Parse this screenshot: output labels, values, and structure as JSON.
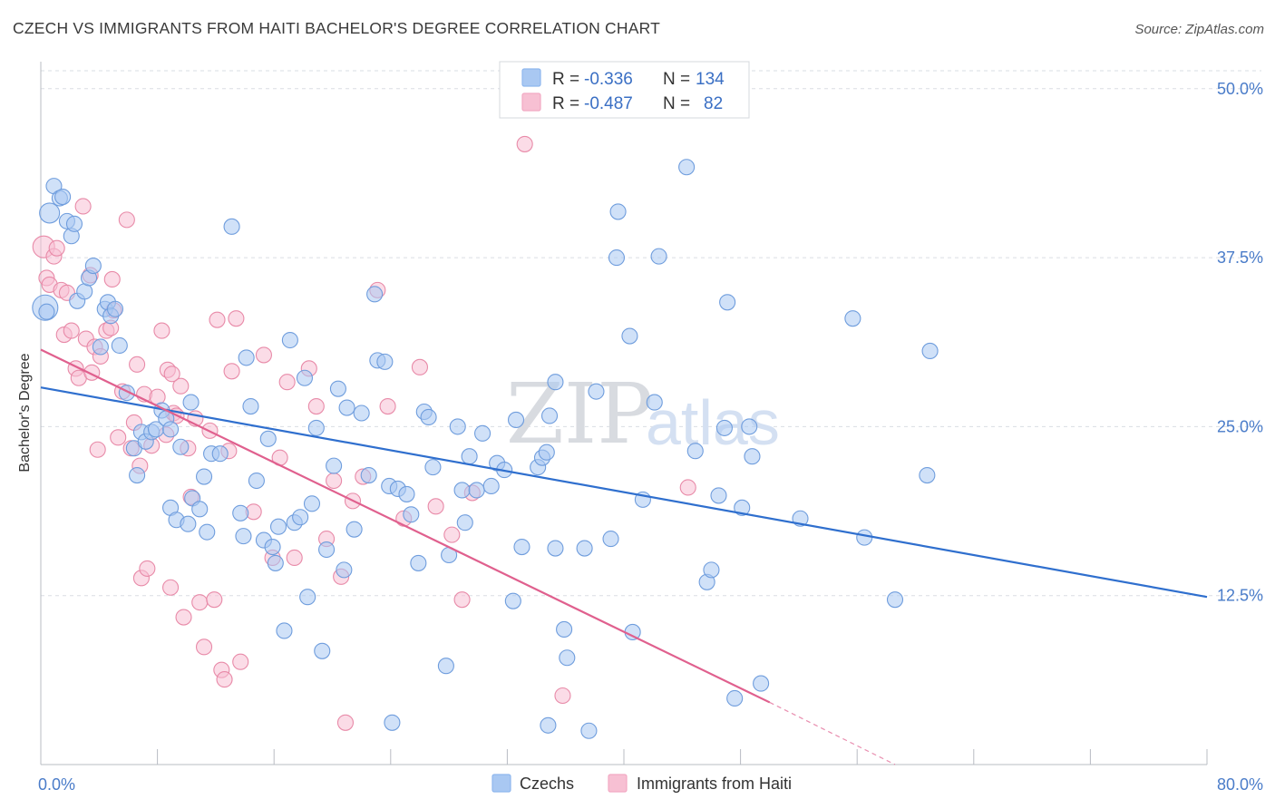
{
  "header": {
    "title": "CZECH VS IMMIGRANTS FROM HAITI BACHELOR'S DEGREE CORRELATION CHART",
    "source": "Source: ZipAtlas.com"
  },
  "watermark": {
    "zip": "ZIP",
    "atlas": "atlas"
  },
  "legend": {
    "r_label": "R =",
    "n_label": "N =",
    "rows": [
      {
        "r": "-0.336",
        "n": "134",
        "color": "#8fb7ee"
      },
      {
        "r": "-0.487",
        "n": "82",
        "color": "#f2a9c3"
      }
    ]
  },
  "bottom_legend": {
    "czechs": "Czechs",
    "haiti": "Immigrants from Haiti"
  },
  "colors": {
    "czech_fill": "#a9c8f2",
    "czech_stroke": "#6f9ddd",
    "czech_line": "#2f6fce",
    "haiti_fill": "#f7c0d3",
    "haiti_stroke": "#e88aa8",
    "haiti_line": "#e0608e",
    "tick_text": "#4a7cc9",
    "grid": "#dadde3"
  },
  "chart_data": {
    "type": "scatter",
    "title": "CZECH VS IMMIGRANTS FROM HAITI BACHELOR'S DEGREE CORRELATION CHART",
    "xlabel": "",
    "ylabel": "Bachelor's Degree",
    "xlim": [
      0,
      80
    ],
    "ylim": [
      0,
      52
    ],
    "x_tick_labels": [
      "0.0%",
      "80.0%"
    ],
    "y_ticks": [
      12.5,
      25.0,
      37.5,
      50.0
    ],
    "y_tick_labels": [
      "12.5%",
      "25.0%",
      "37.5%",
      "50.0%"
    ],
    "grid": true,
    "legend_position": "top-center",
    "series": [
      {
        "name": "Czechs",
        "r": -0.336,
        "n": 134,
        "trend": {
          "x": [
            0,
            80
          ],
          "y": [
            27.9,
            12.4
          ]
        },
        "points": [
          [
            0.3,
            33.8
          ],
          [
            0.6,
            40.8
          ],
          [
            0.9,
            42.8
          ],
          [
            1.3,
            41.9
          ],
          [
            1.5,
            42.0
          ],
          [
            1.8,
            40.2
          ],
          [
            2.1,
            39.1
          ],
          [
            2.3,
            40.0
          ],
          [
            2.5,
            34.3
          ],
          [
            3.0,
            35.0
          ],
          [
            3.3,
            36.0
          ],
          [
            3.6,
            36.9
          ],
          [
            4.1,
            30.9
          ],
          [
            4.4,
            33.7
          ],
          [
            4.6,
            34.2
          ],
          [
            4.8,
            33.2
          ],
          [
            5.1,
            33.7
          ],
          [
            5.4,
            31.0
          ],
          [
            5.9,
            27.5
          ],
          [
            6.4,
            23.4
          ],
          [
            6.6,
            21.4
          ],
          [
            6.9,
            24.6
          ],
          [
            7.2,
            23.9
          ],
          [
            7.6,
            24.6
          ],
          [
            7.9,
            24.8
          ],
          [
            8.3,
            26.2
          ],
          [
            8.6,
            25.6
          ],
          [
            8.9,
            24.8
          ],
          [
            8.9,
            19.0
          ],
          [
            9.3,
            18.1
          ],
          [
            9.6,
            23.5
          ],
          [
            10.1,
            17.8
          ],
          [
            10.3,
            26.8
          ],
          [
            10.4,
            19.7
          ],
          [
            10.9,
            18.9
          ],
          [
            11.2,
            21.3
          ],
          [
            11.4,
            17.2
          ],
          [
            11.7,
            23.0
          ],
          [
            12.3,
            23.0
          ],
          [
            13.1,
            39.8
          ],
          [
            13.7,
            18.6
          ],
          [
            13.9,
            16.9
          ],
          [
            14.1,
            30.1
          ],
          [
            14.4,
            26.5
          ],
          [
            14.8,
            21.0
          ],
          [
            15.3,
            16.6
          ],
          [
            15.6,
            24.1
          ],
          [
            15.9,
            16.1
          ],
          [
            16.1,
            14.9
          ],
          [
            16.3,
            17.6
          ],
          [
            16.7,
            9.9
          ],
          [
            17.1,
            31.4
          ],
          [
            17.4,
            17.9
          ],
          [
            17.8,
            18.3
          ],
          [
            18.1,
            28.6
          ],
          [
            18.3,
            12.4
          ],
          [
            18.6,
            19.3
          ],
          [
            18.9,
            24.9
          ],
          [
            19.3,
            8.4
          ],
          [
            19.6,
            15.9
          ],
          [
            20.1,
            22.1
          ],
          [
            20.4,
            27.8
          ],
          [
            20.8,
            14.4
          ],
          [
            21.0,
            26.4
          ],
          [
            21.5,
            17.4
          ],
          [
            22.0,
            26.0
          ],
          [
            22.5,
            21.4
          ],
          [
            22.9,
            34.8
          ],
          [
            23.1,
            29.9
          ],
          [
            23.6,
            29.8
          ],
          [
            23.9,
            20.6
          ],
          [
            24.1,
            3.1
          ],
          [
            24.5,
            20.4
          ],
          [
            25.1,
            20.0
          ],
          [
            25.4,
            18.5
          ],
          [
            25.9,
            14.9
          ],
          [
            26.3,
            26.1
          ],
          [
            26.6,
            25.7
          ],
          [
            26.9,
            22.0
          ],
          [
            27.8,
            7.3
          ],
          [
            28.0,
            15.5
          ],
          [
            28.6,
            25.0
          ],
          [
            28.9,
            20.3
          ],
          [
            29.1,
            17.9
          ],
          [
            29.4,
            22.8
          ],
          [
            29.9,
            20.3
          ],
          [
            30.3,
            24.5
          ],
          [
            30.9,
            20.6
          ],
          [
            31.3,
            22.3
          ],
          [
            31.8,
            21.8
          ],
          [
            32.4,
            12.1
          ],
          [
            32.6,
            25.5
          ],
          [
            33.0,
            16.1
          ],
          [
            34.1,
            22.0
          ],
          [
            34.4,
            22.7
          ],
          [
            34.7,
            23.1
          ],
          [
            34.9,
            25.8
          ],
          [
            35.3,
            28.3
          ],
          [
            34.8,
            2.9
          ],
          [
            35.9,
            10.0
          ],
          [
            35.3,
            16.0
          ],
          [
            36.1,
            7.9
          ],
          [
            37.3,
            16.0
          ],
          [
            37.6,
            2.5
          ],
          [
            38.1,
            27.6
          ],
          [
            39.1,
            16.7
          ],
          [
            39.5,
            37.5
          ],
          [
            39.6,
            40.9
          ],
          [
            40.4,
            31.7
          ],
          [
            40.6,
            9.8
          ],
          [
            41.3,
            19.6
          ],
          [
            42.1,
            26.8
          ],
          [
            42.4,
            37.6
          ],
          [
            44.3,
            44.2
          ],
          [
            44.9,
            23.2
          ],
          [
            45.7,
            13.5
          ],
          [
            46.0,
            14.4
          ],
          [
            46.5,
            19.9
          ],
          [
            46.9,
            24.9
          ],
          [
            47.1,
            34.2
          ],
          [
            47.6,
            4.9
          ],
          [
            48.1,
            19.0
          ],
          [
            48.6,
            25.0
          ],
          [
            48.8,
            22.8
          ],
          [
            49.4,
            6.0
          ],
          [
            52.1,
            18.2
          ],
          [
            55.7,
            33.0
          ],
          [
            56.5,
            16.8
          ],
          [
            58.6,
            12.2
          ],
          [
            60.8,
            21.4
          ],
          [
            61.0,
            30.6
          ],
          [
            0.4,
            33.5
          ]
        ]
      },
      {
        "name": "Immigrants from Haiti",
        "r": -0.487,
        "n": 82,
        "trend": {
          "x": [
            0,
            50
          ],
          "y": [
            30.7,
            4.6
          ]
        },
        "trend_dashed": {
          "x": [
            50,
            58.6
          ],
          "y": [
            4.6,
            0
          ]
        },
        "points": [
          [
            0.2,
            38.3
          ],
          [
            0.4,
            36.0
          ],
          [
            0.6,
            35.5
          ],
          [
            0.9,
            37.6
          ],
          [
            1.1,
            38.2
          ],
          [
            1.4,
            35.1
          ],
          [
            1.6,
            31.8
          ],
          [
            1.8,
            34.9
          ],
          [
            2.1,
            32.1
          ],
          [
            2.4,
            29.3
          ],
          [
            2.6,
            28.6
          ],
          [
            2.9,
            41.3
          ],
          [
            3.1,
            31.5
          ],
          [
            3.4,
            36.2
          ],
          [
            3.5,
            29.0
          ],
          [
            3.7,
            30.9
          ],
          [
            3.9,
            23.3
          ],
          [
            4.1,
            30.2
          ],
          [
            4.5,
            32.1
          ],
          [
            4.8,
            32.3
          ],
          [
            4.9,
            35.9
          ],
          [
            5.0,
            33.6
          ],
          [
            5.3,
            24.2
          ],
          [
            5.6,
            27.6
          ],
          [
            5.9,
            40.3
          ],
          [
            6.2,
            23.4
          ],
          [
            6.4,
            25.3
          ],
          [
            6.6,
            29.6
          ],
          [
            6.8,
            22.1
          ],
          [
            6.9,
            13.8
          ],
          [
            7.1,
            27.4
          ],
          [
            7.3,
            14.5
          ],
          [
            7.6,
            23.6
          ],
          [
            8.0,
            27.2
          ],
          [
            8.3,
            32.1
          ],
          [
            8.6,
            24.4
          ],
          [
            8.7,
            29.2
          ],
          [
            8.9,
            13.1
          ],
          [
            9.1,
            26.0
          ],
          [
            9.3,
            25.8
          ],
          [
            9.6,
            28.0
          ],
          [
            9.8,
            10.9
          ],
          [
            10.1,
            23.4
          ],
          [
            10.3,
            19.8
          ],
          [
            10.6,
            25.6
          ],
          [
            10.9,
            12.0
          ],
          [
            11.2,
            8.7
          ],
          [
            11.6,
            24.7
          ],
          [
            11.9,
            12.2
          ],
          [
            12.1,
            32.9
          ],
          [
            12.4,
            7.0
          ],
          [
            12.6,
            6.3
          ],
          [
            12.9,
            23.2
          ],
          [
            13.1,
            29.1
          ],
          [
            13.4,
            33.0
          ],
          [
            13.7,
            7.6
          ],
          [
            14.6,
            18.7
          ],
          [
            15.3,
            30.3
          ],
          [
            15.9,
            15.3
          ],
          [
            16.4,
            22.7
          ],
          [
            16.9,
            28.3
          ],
          [
            17.4,
            15.3
          ],
          [
            18.4,
            29.3
          ],
          [
            18.9,
            26.5
          ],
          [
            19.6,
            16.7
          ],
          [
            20.1,
            21.0
          ],
          [
            20.6,
            13.9
          ],
          [
            20.9,
            3.1
          ],
          [
            21.4,
            19.5
          ],
          [
            22.1,
            21.3
          ],
          [
            23.1,
            35.1
          ],
          [
            24.9,
            18.2
          ],
          [
            26.0,
            29.4
          ],
          [
            27.1,
            19.1
          ],
          [
            28.2,
            17.0
          ],
          [
            28.9,
            12.2
          ],
          [
            29.6,
            20.1
          ],
          [
            33.2,
            45.9
          ],
          [
            35.8,
            5.1
          ],
          [
            44.4,
            20.5
          ],
          [
            23.8,
            26.5
          ],
          [
            9.0,
            28.9
          ]
        ]
      }
    ]
  }
}
